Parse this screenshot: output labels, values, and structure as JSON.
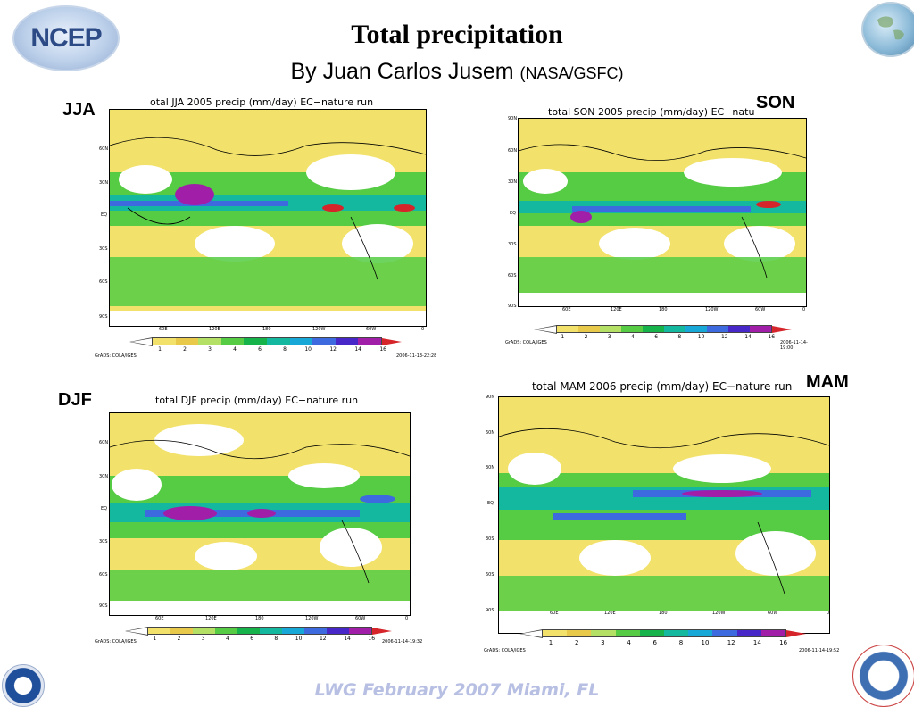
{
  "header": {
    "logo_left": "NCEP",
    "title": "Total precipitation",
    "subtitle_main": "By Juan Carlos Jusem",
    "subtitle_org": "(NASA/GSFC)"
  },
  "colorbar": {
    "labels": [
      "1",
      "2",
      "3",
      "4",
      "6",
      "8",
      "10",
      "12",
      "14",
      "16"
    ],
    "colors": [
      "#f2e26b",
      "#e8c94a",
      "#b4e066",
      "#55cc44",
      "#15b34a",
      "#14b89f",
      "#18a8d8",
      "#3e6ae0",
      "#4727c8",
      "#a01ea8",
      "#d5252a"
    ]
  },
  "panels": [
    {
      "season": "JJA",
      "title": "otal JJA 2005 precip (mm/day) EC−nature run",
      "lat_labels": [
        "60N",
        "30N",
        "EQ",
        "30S",
        "60S",
        "90S"
      ],
      "lon_labels": [
        "60E",
        "120E",
        "180",
        "120W",
        "60W",
        "0"
      ],
      "left_footer": "GrADS: COLA/IGES",
      "right_footer": "2006-11-13-22:28"
    },
    {
      "season": "SON",
      "title": "total SON 2005 precip (mm/day) EC−natu",
      "lat_labels": [
        "90N",
        "60N",
        "30N",
        "EQ",
        "30S",
        "60S",
        "90S"
      ],
      "lon_labels": [
        "60E",
        "120E",
        "180",
        "120W",
        "60W",
        "0"
      ],
      "left_footer": "GrADS: COLA/IGES",
      "right_footer": "2006-11-14-19:00"
    },
    {
      "season": "DJF",
      "title": "total DJF precip (mm/day) EC−nature run",
      "lat_labels": [
        "60N",
        "30N",
        "EQ",
        "30S",
        "60S",
        "90S"
      ],
      "lon_labels": [
        "60E",
        "120E",
        "180",
        "120W",
        "60W",
        "0"
      ],
      "left_footer": "GrADS: COLA/IGES",
      "right_footer": "2006-11-14-19:32"
    },
    {
      "season": "MAM",
      "title": "total MAM 2006 precip (mm/day) EC−nature run",
      "lat_labels": [
        "90N",
        "60N",
        "30N",
        "EQ",
        "30S",
        "60S",
        "90S"
      ],
      "lon_labels": [
        "60E",
        "120E",
        "180",
        "120W",
        "60W",
        "0"
      ],
      "left_footer": "GrADS: COLA/IGES",
      "right_footer": "2006-11-14-19:52"
    }
  ],
  "footer": {
    "text": "LWG  February 2007 Miami, FL"
  }
}
